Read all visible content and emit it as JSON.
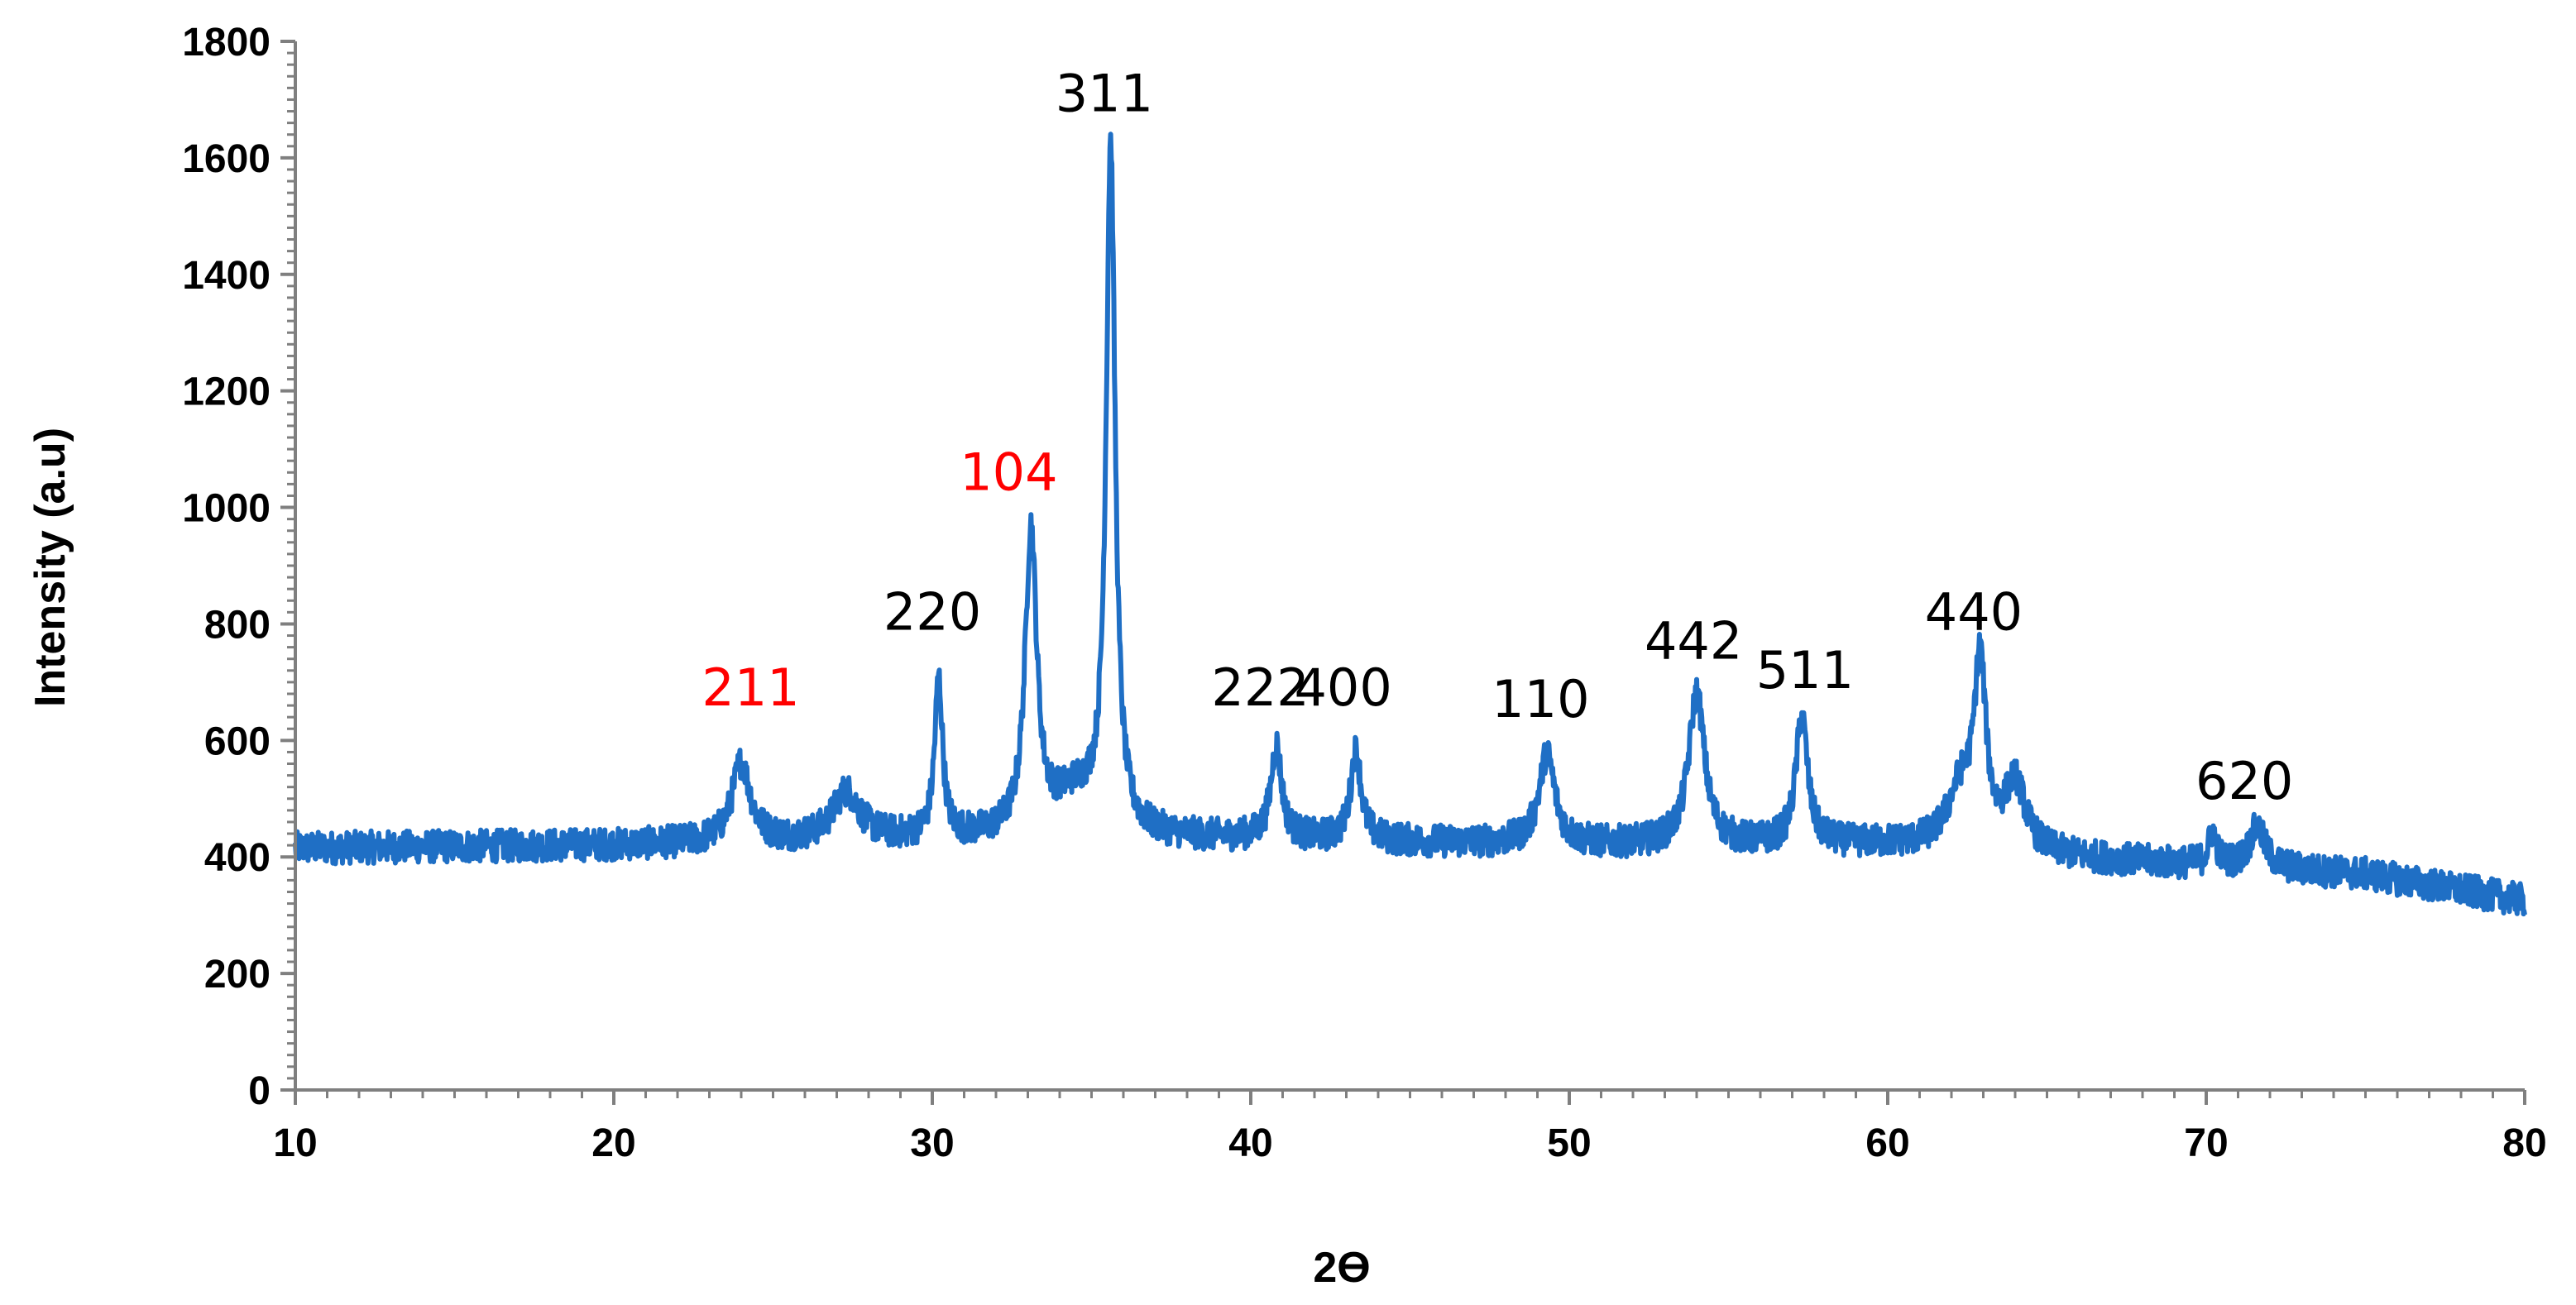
{
  "chart_data": {
    "type": "line",
    "title": "",
    "xlabel": "2ϴ",
    "ylabel": "Intensity (a.u)",
    "xlim": [
      10,
      80
    ],
    "ylim": [
      0,
      1800
    ],
    "x_ticks": [
      "10",
      "20",
      "30",
      "40",
      "50",
      "60",
      "70",
      "80"
    ],
    "y_ticks": [
      "0",
      "200",
      "400",
      "600",
      "800",
      "1000",
      "1200",
      "1400",
      "1600",
      "1800"
    ],
    "grid": false,
    "legend": "none",
    "line_color": "#1f6fc5",
    "baseline": [
      [
        10,
        415
      ],
      [
        20,
        420
      ],
      [
        30,
        430
      ],
      [
        40,
        430
      ],
      [
        50,
        420
      ],
      [
        60,
        420
      ],
      [
        65,
        400
      ],
      [
        75,
        370
      ],
      [
        80,
        325
      ]
    ],
    "series": [
      {
        "peaks": [
          {
            "x": 24.0,
            "y": 560,
            "w": 0.35
          },
          {
            "x": 27.3,
            "y": 510,
            "w": 0.5
          },
          {
            "x": 30.2,
            "y": 700,
            "w": 0.15
          },
          {
            "x": 33.1,
            "y": 945,
            "w": 0.22
          },
          {
            "x": 34.5,
            "y": 500,
            "w": 0.9
          },
          {
            "x": 35.6,
            "y": 1600,
            "w": 0.17
          },
          {
            "x": 40.8,
            "y": 590,
            "w": 0.2
          },
          {
            "x": 43.3,
            "y": 580,
            "w": 0.2
          },
          {
            "x": 49.3,
            "y": 575,
            "w": 0.3
          },
          {
            "x": 54.0,
            "y": 680,
            "w": 0.3
          },
          {
            "x": 57.3,
            "y": 640,
            "w": 0.22
          },
          {
            "x": 62.3,
            "y": 510,
            "w": 0.5
          },
          {
            "x": 62.9,
            "y": 710,
            "w": 0.22
          },
          {
            "x": 64.0,
            "y": 520,
            "w": 0.4
          },
          {
            "x": 70.2,
            "y": 440,
            "w": 0.15
          },
          {
            "x": 71.6,
            "y": 450,
            "w": 0.3
          }
        ],
        "noise_amplitude": 28
      }
    ],
    "annotations": [
      {
        "text": "211",
        "x": 24.3,
        "y": 660,
        "color": "#ff0000"
      },
      {
        "text": "220",
        "x": 30.0,
        "y": 790,
        "color": "#000000"
      },
      {
        "text": "104",
        "x": 32.4,
        "y": 1030,
        "color": "#ff0000"
      },
      {
        "text": "311",
        "x": 35.4,
        "y": 1680,
        "color": "#000000"
      },
      {
        "text": "222",
        "x": 40.3,
        "y": 660,
        "color": "#000000"
      },
      {
        "text": "400",
        "x": 42.9,
        "y": 660,
        "color": "#000000"
      },
      {
        "text": "110",
        "x": 49.1,
        "y": 640,
        "color": "#000000"
      },
      {
        "text": "442",
        "x": 53.9,
        "y": 740,
        "color": "#000000"
      },
      {
        "text": "511",
        "x": 57.4,
        "y": 690,
        "color": "#000000"
      },
      {
        "text": "440",
        "x": 62.7,
        "y": 790,
        "color": "#000000"
      },
      {
        "text": "620",
        "x": 71.2,
        "y": 500,
        "color": "#000000"
      }
    ]
  }
}
